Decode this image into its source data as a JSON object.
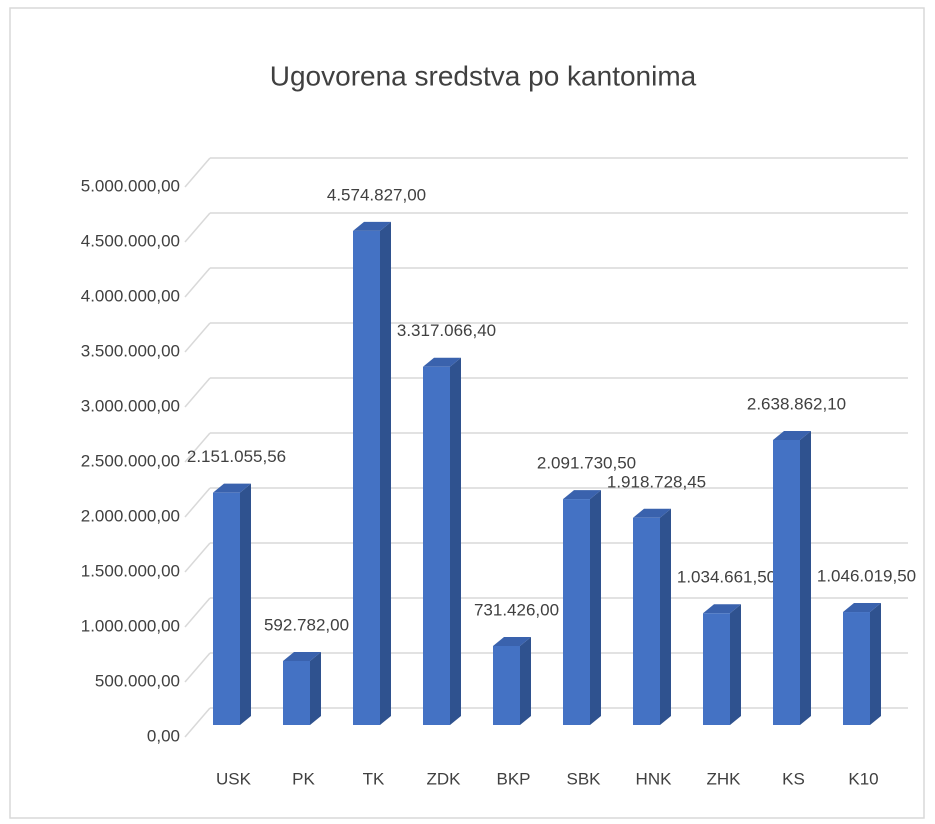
{
  "chart_data": {
    "type": "bar3d",
    "title": "Ugovorena sredstva po kantonima",
    "categories": [
      "USK",
      "PK",
      "TK",
      "ZDK",
      "BKP",
      "SBK",
      "HNK",
      "ZHK",
      "KS",
      "K10"
    ],
    "values": [
      2151055.56,
      592782,
      4574827,
      3317066.4,
      731426,
      2091730.5,
      1918728.45,
      1034661.5,
      2638862.1,
      1046019.5
    ],
    "value_labels": [
      "2.151.055,56",
      "592.782,00",
      "4.574.827,00",
      "3.317.066,40",
      "731.426,00",
      "2.091.730,50",
      "1.918.728,45",
      "1.034.661,50",
      "2.638.862,10",
      "1.046.019,50"
    ],
    "color": "#4472c4",
    "ylim": [
      0,
      5000000
    ],
    "yticks": [
      {
        "value": 0,
        "label": "0,00"
      },
      {
        "value": 500000,
        "label": "500.000,00"
      },
      {
        "value": 1000000,
        "label": "1.000.000,00"
      },
      {
        "value": 1500000,
        "label": "1.500.000,00"
      },
      {
        "value": 2000000,
        "label": "2.000.000,00"
      },
      {
        "value": 2500000,
        "label": "2.500.000,00"
      },
      {
        "value": 3000000,
        "label": "3.000.000,00"
      },
      {
        "value": 3500000,
        "label": "3.500.000,00"
      },
      {
        "value": 4000000,
        "label": "4.000.000,00"
      },
      {
        "value": 4500000,
        "label": "4.500.000,00"
      },
      {
        "value": 5000000,
        "label": "5.000.000,00"
      }
    ],
    "grid": true
  }
}
